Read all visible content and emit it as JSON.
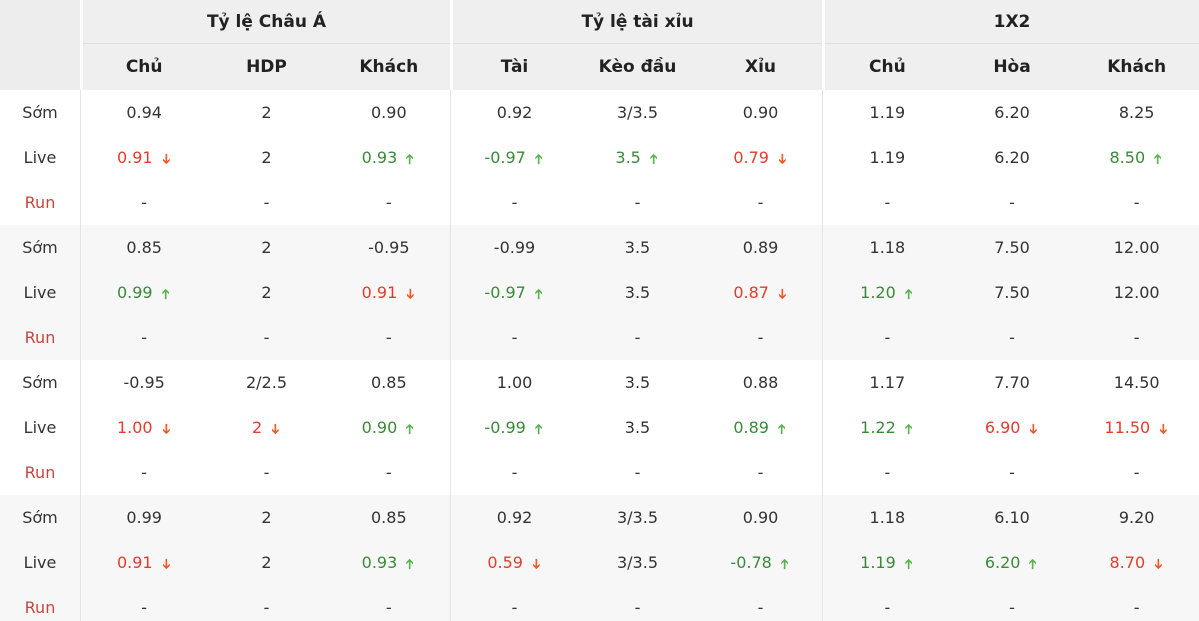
{
  "colors": {
    "header-bg": "#efefef",
    "label-header-bg": "#ededed",
    "stripe-bg": "#f7f7f7",
    "text": "#333333",
    "red": "#e23c2d",
    "red-arrow": "#ef5a24",
    "green": "#3a8a3a",
    "green-arrow": "#5cb252",
    "run-label": "#c5473f",
    "border": "#e4e4e4"
  },
  "header": {
    "groups": [
      {
        "title": "Tỷ lệ Châu Á",
        "columns": [
          "Chủ",
          "HDP",
          "Khách"
        ]
      },
      {
        "title": "Tỷ lệ tài xỉu",
        "columns": [
          "Tài",
          "Kèo đầu",
          "Xỉu"
        ]
      },
      {
        "title": "1X2",
        "columns": [
          "Chủ",
          "Hòa",
          "Khách"
        ]
      }
    ]
  },
  "groups": [
    {
      "rows": [
        {
          "label": "Sớm",
          "type": "som",
          "cells": [
            {
              "v": "0.94"
            },
            {
              "v": "2"
            },
            {
              "v": "0.90"
            },
            {
              "v": "0.92"
            },
            {
              "v": "3/3.5"
            },
            {
              "v": "0.90"
            },
            {
              "v": "1.19"
            },
            {
              "v": "6.20"
            },
            {
              "v": "8.25"
            }
          ]
        },
        {
          "label": "Live",
          "type": "live",
          "cells": [
            {
              "v": "0.91",
              "c": "red",
              "a": "down"
            },
            {
              "v": "2"
            },
            {
              "v": "0.93",
              "c": "green",
              "a": "up"
            },
            {
              "v": "-0.97",
              "c": "green",
              "a": "up"
            },
            {
              "v": "3.5",
              "c": "green",
              "a": "up"
            },
            {
              "v": "0.79",
              "c": "red",
              "a": "down"
            },
            {
              "v": "1.19"
            },
            {
              "v": "6.20"
            },
            {
              "v": "8.50",
              "c": "green",
              "a": "up"
            }
          ]
        },
        {
          "label": "Run",
          "type": "run",
          "cells": [
            {
              "v": "-"
            },
            {
              "v": "-"
            },
            {
              "v": "-"
            },
            {
              "v": "-"
            },
            {
              "v": "-"
            },
            {
              "v": "-"
            },
            {
              "v": "-"
            },
            {
              "v": "-"
            },
            {
              "v": "-"
            }
          ]
        }
      ]
    },
    {
      "rows": [
        {
          "label": "Sớm",
          "type": "som",
          "cells": [
            {
              "v": "0.85"
            },
            {
              "v": "2"
            },
            {
              "v": "-0.95"
            },
            {
              "v": "-0.99"
            },
            {
              "v": "3.5"
            },
            {
              "v": "0.89"
            },
            {
              "v": "1.18"
            },
            {
              "v": "7.50"
            },
            {
              "v": "12.00"
            }
          ]
        },
        {
          "label": "Live",
          "type": "live",
          "cells": [
            {
              "v": "0.99",
              "c": "green",
              "a": "up"
            },
            {
              "v": "2"
            },
            {
              "v": "0.91",
              "c": "red",
              "a": "down"
            },
            {
              "v": "-0.97",
              "c": "green",
              "a": "up"
            },
            {
              "v": "3.5"
            },
            {
              "v": "0.87",
              "c": "red",
              "a": "down"
            },
            {
              "v": "1.20",
              "c": "green",
              "a": "up"
            },
            {
              "v": "7.50"
            },
            {
              "v": "12.00"
            }
          ]
        },
        {
          "label": "Run",
          "type": "run",
          "cells": [
            {
              "v": "-"
            },
            {
              "v": "-"
            },
            {
              "v": "-"
            },
            {
              "v": "-"
            },
            {
              "v": "-"
            },
            {
              "v": "-"
            },
            {
              "v": "-"
            },
            {
              "v": "-"
            },
            {
              "v": "-"
            }
          ]
        }
      ]
    },
    {
      "rows": [
        {
          "label": "Sớm",
          "type": "som",
          "cells": [
            {
              "v": "-0.95"
            },
            {
              "v": "2/2.5"
            },
            {
              "v": "0.85"
            },
            {
              "v": "1.00"
            },
            {
              "v": "3.5"
            },
            {
              "v": "0.88"
            },
            {
              "v": "1.17"
            },
            {
              "v": "7.70"
            },
            {
              "v": "14.50"
            }
          ]
        },
        {
          "label": "Live",
          "type": "live",
          "cells": [
            {
              "v": "1.00",
              "c": "red",
              "a": "down"
            },
            {
              "v": "2",
              "c": "red",
              "a": "down"
            },
            {
              "v": "0.90",
              "c": "green",
              "a": "up"
            },
            {
              "v": "-0.99",
              "c": "green",
              "a": "up"
            },
            {
              "v": "3.5"
            },
            {
              "v": "0.89",
              "c": "green",
              "a": "up"
            },
            {
              "v": "1.22",
              "c": "green",
              "a": "up"
            },
            {
              "v": "6.90",
              "c": "red",
              "a": "down"
            },
            {
              "v": "11.50",
              "c": "red",
              "a": "down"
            }
          ]
        },
        {
          "label": "Run",
          "type": "run",
          "cells": [
            {
              "v": "-"
            },
            {
              "v": "-"
            },
            {
              "v": "-"
            },
            {
              "v": "-"
            },
            {
              "v": "-"
            },
            {
              "v": "-"
            },
            {
              "v": "-"
            },
            {
              "v": "-"
            },
            {
              "v": "-"
            }
          ]
        }
      ]
    },
    {
      "rows": [
        {
          "label": "Sớm",
          "type": "som",
          "cells": [
            {
              "v": "0.99"
            },
            {
              "v": "2"
            },
            {
              "v": "0.85"
            },
            {
              "v": "0.92"
            },
            {
              "v": "3/3.5"
            },
            {
              "v": "0.90"
            },
            {
              "v": "1.18"
            },
            {
              "v": "6.10"
            },
            {
              "v": "9.20"
            }
          ]
        },
        {
          "label": "Live",
          "type": "live",
          "cells": [
            {
              "v": "0.91",
              "c": "red",
              "a": "down"
            },
            {
              "v": "2"
            },
            {
              "v": "0.93",
              "c": "green",
              "a": "up"
            },
            {
              "v": "0.59",
              "c": "red",
              "a": "down"
            },
            {
              "v": "3/3.5"
            },
            {
              "v": "-0.78",
              "c": "green",
              "a": "up"
            },
            {
              "v": "1.19",
              "c": "green",
              "a": "up"
            },
            {
              "v": "6.20",
              "c": "green",
              "a": "up"
            },
            {
              "v": "8.70",
              "c": "red",
              "a": "down"
            }
          ]
        },
        {
          "label": "Run",
          "type": "run",
          "cells": [
            {
              "v": "-"
            },
            {
              "v": "-"
            },
            {
              "v": "-"
            },
            {
              "v": "-"
            },
            {
              "v": "-"
            },
            {
              "v": "-"
            },
            {
              "v": "-"
            },
            {
              "v": "-"
            },
            {
              "v": "-"
            }
          ]
        }
      ]
    }
  ]
}
